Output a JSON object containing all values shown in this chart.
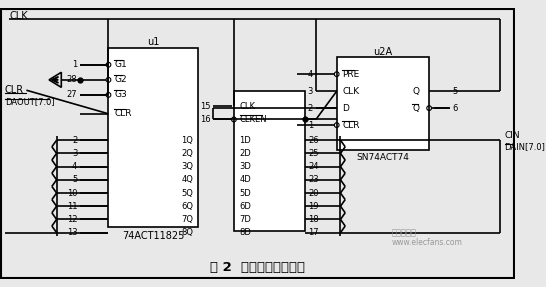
{
  "title": "图 2  输出端电路原理图",
  "bg_color": "#e8e8e8",
  "u1_label": "u1",
  "u1b_label": "74ACT11825",
  "u2a_label": "u2A",
  "u2a_bottom_label": "SN74ACT74",
  "clk_label": "CLK",
  "clr_label": "CLR",
  "daout_label": "DAOUT[7.0]",
  "cin_label": "CIN",
  "dain_label": "DAIN[7.0]"
}
